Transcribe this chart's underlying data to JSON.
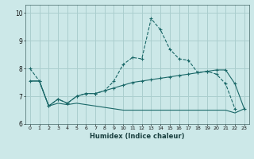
{
  "xlabel": "Humidex (Indice chaleur)",
  "bg_color": "#cce8e8",
  "grid_color": "#aacece",
  "line_color": "#1a6868",
  "xlim": [
    -0.5,
    23.5
  ],
  "ylim": [
    6.0,
    10.3
  ],
  "xticks": [
    0,
    1,
    2,
    3,
    4,
    5,
    6,
    7,
    8,
    9,
    10,
    11,
    12,
    13,
    14,
    15,
    16,
    17,
    18,
    19,
    20,
    21,
    22,
    23
  ],
  "yticks": [
    6,
    7,
    8,
    9,
    10
  ],
  "line1_x": [
    0,
    1,
    2,
    3,
    4,
    5,
    6,
    7,
    8,
    9,
    10,
    11,
    12,
    13,
    14,
    15,
    16,
    17,
    18,
    19,
    20,
    21,
    22,
    23
  ],
  "line1_y": [
    8.0,
    7.55,
    6.65,
    6.9,
    6.75,
    7.0,
    7.1,
    7.1,
    7.2,
    7.55,
    8.15,
    8.4,
    8.35,
    9.8,
    9.4,
    8.7,
    8.35,
    8.3,
    7.85,
    7.9,
    7.8,
    7.45,
    6.55,
    null
  ],
  "line2_x": [
    0,
    1,
    2,
    3,
    4,
    5,
    6,
    7,
    8,
    9,
    10,
    11,
    12,
    13,
    14,
    15,
    16,
    17,
    18,
    19,
    20,
    21,
    22,
    23
  ],
  "line2_y": [
    7.55,
    7.55,
    6.65,
    6.9,
    6.75,
    7.0,
    7.1,
    7.1,
    7.2,
    7.3,
    7.4,
    7.5,
    7.55,
    7.6,
    7.65,
    7.7,
    7.75,
    7.8,
    7.85,
    7.9,
    7.95,
    7.95,
    7.45,
    6.55
  ],
  "line3_x": [
    0,
    1,
    2,
    3,
    4,
    5,
    6,
    7,
    8,
    9,
    10,
    11,
    12,
    13,
    14,
    15,
    16,
    17,
    18,
    19,
    20,
    21,
    22,
    23
  ],
  "line3_y": [
    7.55,
    7.55,
    6.65,
    6.75,
    6.7,
    6.75,
    6.7,
    6.65,
    6.6,
    6.55,
    6.5,
    6.5,
    6.5,
    6.5,
    6.5,
    6.5,
    6.5,
    6.5,
    6.5,
    6.5,
    6.5,
    6.5,
    6.4,
    6.55
  ]
}
